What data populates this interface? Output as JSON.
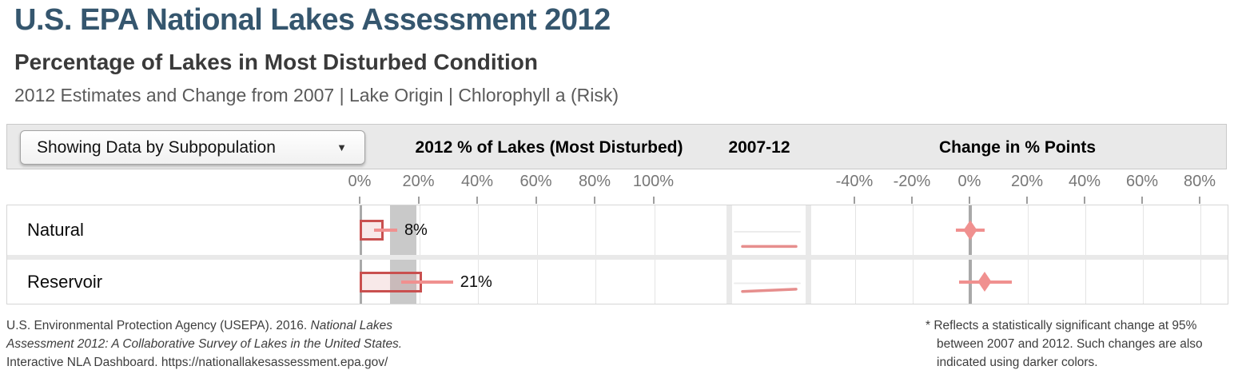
{
  "page": {
    "title": "U.S. EPA National Lakes Assessment 2012",
    "subtitle": "Percentage of Lakes in Most Disturbed Condition",
    "descriptor": "2012 Estimates and Change from 2007 | Lake Origin | Chlorophyll a (Risk)"
  },
  "toolbar": {
    "subpopulation_button": "Showing Data by Subpopulation",
    "caret_down_icon": "▼",
    "col_2012": "2012 % of Lakes (Most Disturbed)",
    "col_trend": "2007-12",
    "col_change": "Change in % Points"
  },
  "chart_data": {
    "type": "bar",
    "title": "Percentage of Lakes in Most Disturbed Condition — Lake Origin — Chlorophyll a (Risk)",
    "categories": [
      "Natural",
      "Reservoir"
    ],
    "series": [
      {
        "name": "2012 % of Lakes (Most Disturbed)",
        "unit": "%",
        "values": [
          8,
          21
        ],
        "value_labels": [
          "8%",
          "21%"
        ],
        "ci95": [
          [
            4.5,
            12.5
          ],
          [
            14,
            31.5
          ]
        ]
      },
      {
        "name": "2007-12 trend",
        "x": [
          2007,
          2012
        ],
        "values_2007": [
          8,
          16
        ],
        "values_2012": [
          8,
          21
        ]
      },
      {
        "name": "Change in % Points",
        "unit": "percentage points",
        "values": [
          0,
          5
        ],
        "ci95": [
          [
            -5,
            5
          ],
          [
            -4,
            14.5
          ]
        ],
        "significant": [
          false,
          false
        ]
      }
    ],
    "reference_band_2012_pct": [
      10,
      19
    ],
    "axis_2012": {
      "tick_labels": [
        "0%",
        "20%",
        "40%",
        "60%",
        "80%",
        "100%"
      ],
      "tick_values": [
        0,
        20,
        40,
        60,
        80,
        100
      ],
      "grid": true
    },
    "axis_change": {
      "tick_labels": [
        "-40%",
        "-20%",
        "0%",
        "20%",
        "40%",
        "60%",
        "80%"
      ],
      "tick_values": [
        -40,
        -20,
        0,
        20,
        40,
        60,
        80
      ],
      "grid": true
    },
    "legend_position": "none"
  },
  "footer": {
    "citation_lines": [
      [
        {
          "text": "U.S. Environmental Protection Agency (USEPA). 2016. ",
          "italic": false
        },
        {
          "text": "National Lakes",
          "italic": true
        }
      ],
      [
        {
          "text": "Assessment 2012: A Collaborative Survey of Lakes in the United States.",
          "italic": true
        }
      ],
      [
        {
          "text": "Interactive NLA Dashboard. https://nationallakesassessment.epa.gov/",
          "italic": false
        }
      ]
    ],
    "footnote_lines": [
      "* Reflects a statistically significant change at 95%",
      "between 2007 and 2012. Such changes are also",
      "indicated using darker colors."
    ]
  },
  "colors": {
    "title_color": "#35566E",
    "bar_fill": "rgba(203,82,82,0.13)",
    "bar_border": "#c9504f",
    "marker": "#f0908f",
    "spark": "#e68e8d",
    "band": "#c9c9c9",
    "grid": "#e4e4e4",
    "zero_line": "#a9a9a9",
    "separator": "#e9e9e9",
    "toolbar_bg": "#e9e9e9"
  }
}
